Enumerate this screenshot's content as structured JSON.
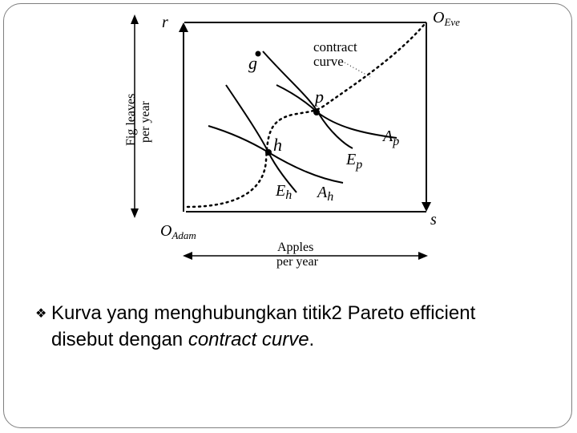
{
  "diagram": {
    "origin_eve": "O",
    "origin_eve_sub": "Eve",
    "origin_adam": "O",
    "origin_adam_sub": "Adam",
    "axis_r": "r",
    "axis_s": "s",
    "y_axis_label_line1": "Fig leaves",
    "y_axis_label_line2": "per year",
    "x_axis_label_line1": "Apples",
    "x_axis_label_line2": "per year",
    "contract_curve_line1": "contract",
    "contract_curve_line2": "curve",
    "point_g": "g",
    "point_p": "p",
    "point_h": "h",
    "curve_Ep": "E",
    "curve_Ep_sub": "p",
    "curve_Ap": "A",
    "curve_Ap_sub": "p",
    "curve_Eh": "E",
    "curve_Eh_sub": "h",
    "curve_Ah": "A",
    "curve_Ah_sub": "h"
  },
  "caption": {
    "text_before": "Kurva yang menghubungkan titik2 Pareto efficient",
    "text_line2": "disebut dengan ",
    "text_italic": "contract curve",
    "text_after": "."
  }
}
